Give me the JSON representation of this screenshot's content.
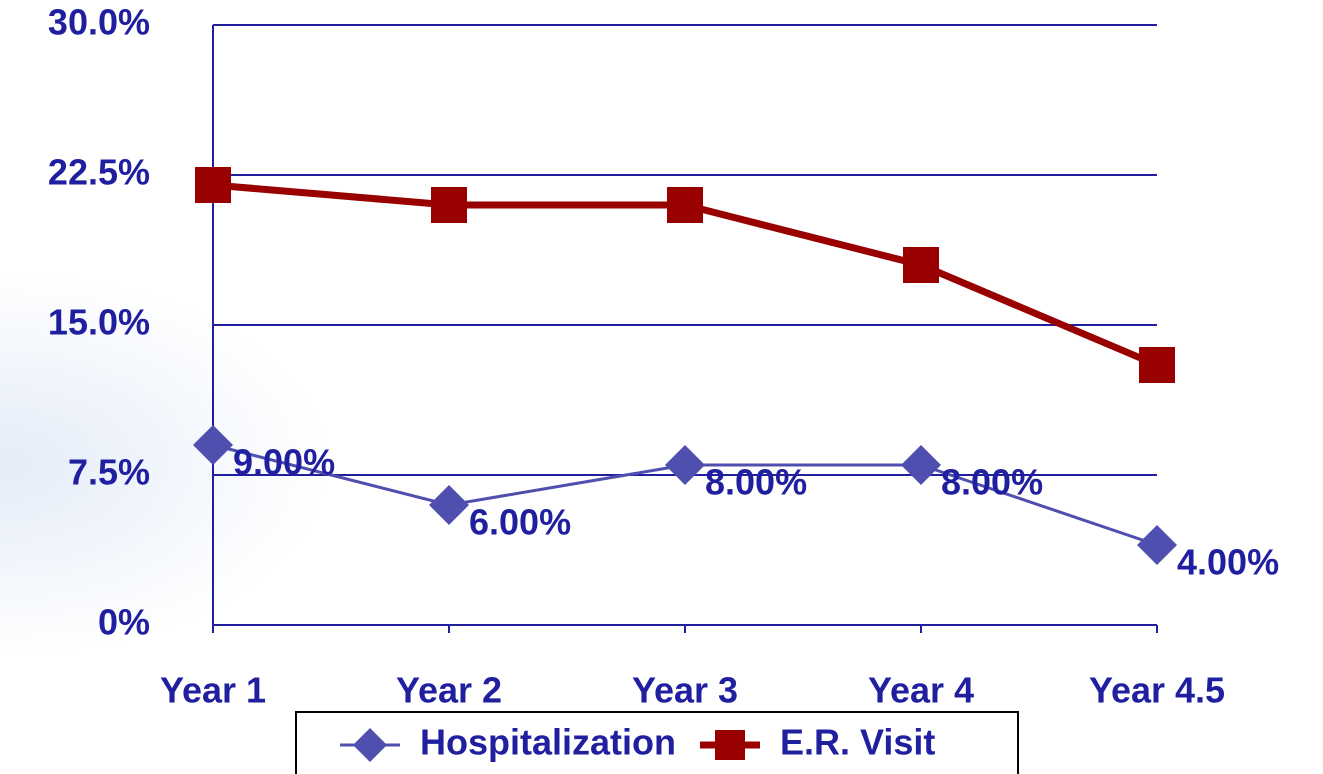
{
  "chart_data": {
    "type": "line",
    "categories": [
      "Year 1",
      "Year 2",
      "Year 3",
      "Year 4",
      "Year 4.5"
    ],
    "series": [
      {
        "name": "Hospitalization",
        "color": "#4f4fb0",
        "marker": "diamond",
        "values": [
          9,
          6,
          8,
          8,
          4
        ],
        "value_labels": [
          "9.00%",
          "6.00%",
          "8.00%",
          "8.00%",
          "4.00%"
        ]
      },
      {
        "name": "E.R. Visit",
        "color": "#990000",
        "marker": "square",
        "values": [
          22,
          21,
          21,
          18,
          13
        ]
      }
    ],
    "ylim": [
      0,
      30
    ],
    "yticks": [
      {
        "value": 0,
        "label": "0%"
      },
      {
        "value": 7.5,
        "label": "7.5%"
      },
      {
        "value": 15,
        "label": "15.0%"
      },
      {
        "value": 22.5,
        "label": "22.5%"
      },
      {
        "value": 30,
        "label": "30.0%"
      }
    ],
    "grid": true,
    "legend": "bottom"
  }
}
